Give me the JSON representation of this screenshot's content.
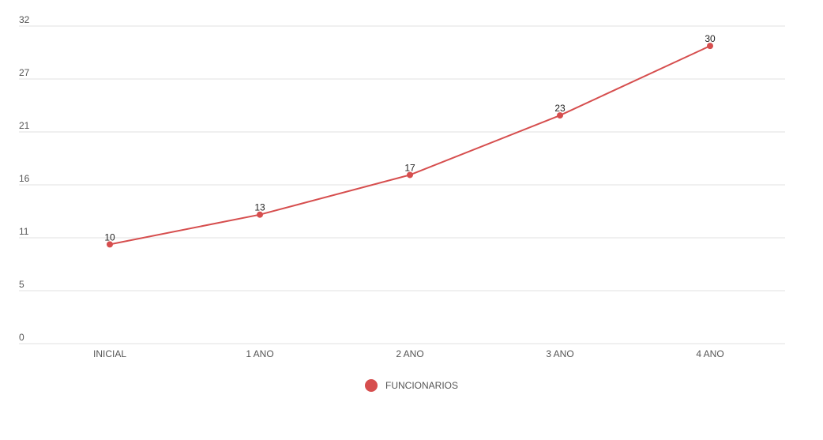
{
  "chart_data": {
    "type": "line",
    "categories": [
      "INICIAL",
      "1 ANO",
      "2 ANO",
      "3 ANO",
      "4 ANO"
    ],
    "series": [
      {
        "name": "FUNCIONARIOS",
        "values": [
          10,
          13,
          17,
          23,
          30
        ],
        "color": "#d64e4e"
      }
    ],
    "y_ticks": [
      "0",
      "5",
      "11",
      "16",
      "21",
      "27",
      "32"
    ],
    "ylim": [
      0,
      32
    ],
    "data_labels": true,
    "grid": true,
    "legend": "bottom-center"
  },
  "colors": {
    "grid": "#e2e2e2",
    "axis_text": "#555555",
    "label_text": "#222222"
  }
}
